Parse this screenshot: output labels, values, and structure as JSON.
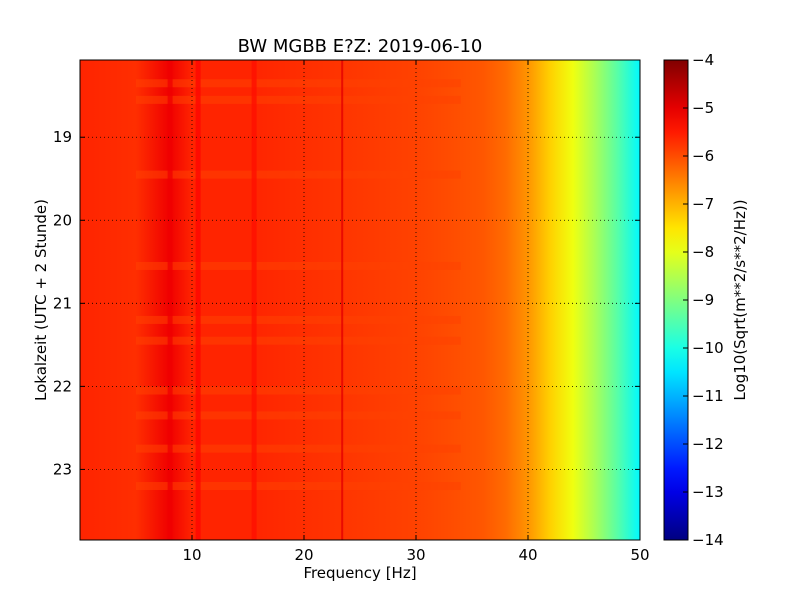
{
  "chart_data": {
    "type": "heatmap",
    "title": "BW MGBB E?Z: 2019-06-10",
    "xlabel": "Frequency [Hz]",
    "ylabel": "Lokalzeit (UTC + 2 Stunde)",
    "xlim": [
      0,
      50
    ],
    "ylim": [
      18.07,
      23.85
    ],
    "y_inverted": true,
    "grid": true,
    "x_ticks": [
      {
        "value": 10,
        "label": "10"
      },
      {
        "value": 20,
        "label": "20"
      },
      {
        "value": 30,
        "label": "30"
      },
      {
        "value": 40,
        "label": "40"
      },
      {
        "value": 50,
        "label": "50"
      }
    ],
    "y_ticks": [
      {
        "value": 19,
        "label": "19"
      },
      {
        "value": 20,
        "label": "20"
      },
      {
        "value": 21,
        "label": "21"
      },
      {
        "value": 22,
        "label": "22"
      },
      {
        "value": 23,
        "label": "23"
      }
    ],
    "colormap": "jet",
    "colorbar": {
      "label": "Log10(Sqrt(m**2/s**2/Hz))",
      "min": -14,
      "max": -4,
      "ticks": [
        {
          "value": -4,
          "label": "−4"
        },
        {
          "value": -5,
          "label": "−5"
        },
        {
          "value": -6,
          "label": "−6"
        },
        {
          "value": -7,
          "label": "−7"
        },
        {
          "value": -8,
          "label": "−8"
        },
        {
          "value": -9,
          "label": "−9"
        },
        {
          "value": -10,
          "label": "−10"
        },
        {
          "value": -11,
          "label": "−11"
        },
        {
          "value": -12,
          "label": "−12"
        },
        {
          "value": -13,
          "label": "−13"
        },
        {
          "value": -14,
          "label": "−14"
        }
      ]
    },
    "spectrum_profile": {
      "freq_hz": [
        0,
        5,
        8,
        10,
        15,
        20,
        25,
        30,
        33,
        36,
        38,
        40,
        42,
        44,
        46,
        48,
        50
      ],
      "log10_amplitude": [
        -5.6,
        -5.7,
        -5.1,
        -5.6,
        -5.6,
        -5.7,
        -5.8,
        -5.9,
        -6.0,
        -6.1,
        -6.3,
        -6.7,
        -7.3,
        -7.9,
        -8.6,
        -9.4,
        -10.3
      ]
    },
    "spectral_lines": [
      {
        "freq_hz": 8,
        "log10_amplitude": -5.1
      },
      {
        "freq_hz": 10.5,
        "log10_amplitude": -5.3
      },
      {
        "freq_hz": 15.5,
        "log10_amplitude": -5.4
      },
      {
        "freq_hz": 23.5,
        "log10_amplitude": -5.0
      }
    ],
    "horizontal_bands_hour": [
      18.35,
      18.55,
      19.45,
      20.55,
      21.2,
      21.45,
      22.05,
      22.35,
      22.75,
      23.2
    ]
  }
}
